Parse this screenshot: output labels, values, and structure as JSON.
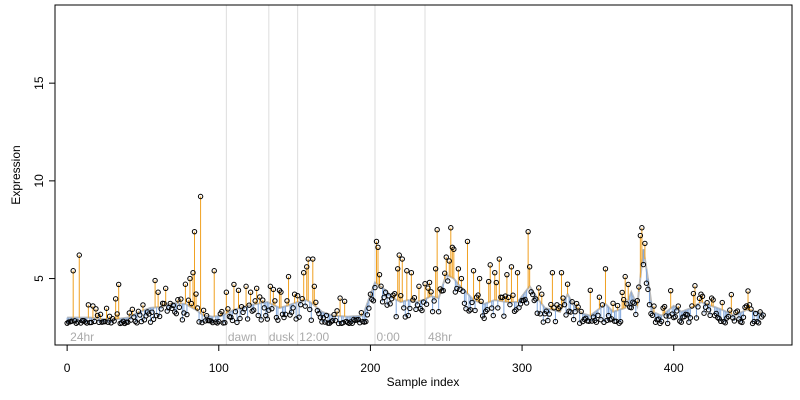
{
  "chart_data": {
    "type": "scatter",
    "title": "",
    "xlabel": "Sample index",
    "ylabel": "Expression",
    "xlim": [
      -8,
      478
    ],
    "ylim": [
      1.6,
      19.0
    ],
    "xticks": [
      0,
      100,
      200,
      300,
      400
    ],
    "yticks": [
      5,
      10,
      15
    ],
    "grid": false,
    "vlines": [
      105,
      133,
      152,
      203,
      236
    ],
    "annotations": [
      {
        "text": "24hr",
        "x": 2
      },
      {
        "text": "dawn",
        "x": 106
      },
      {
        "text": "dusk",
        "x": 133
      },
      {
        "text": "12:00",
        "x": 153
      },
      {
        "text": "0:00",
        "x": 204
      },
      {
        "text": "48hr",
        "x": 238
      }
    ],
    "annotation_y": 2.0,
    "colors": {
      "observed": "#000000",
      "fitted_line": "#bbbbbb",
      "residual_up": "#f0a020",
      "residual_down": "#7fa6dc",
      "vline": "#dddddd"
    },
    "point_count": 460,
    "baseline": [
      [
        0,
        3.0
      ],
      [
        8,
        3.0
      ],
      [
        15,
        3.0
      ],
      [
        20,
        2.95
      ],
      [
        30,
        2.9
      ],
      [
        40,
        3.0
      ],
      [
        48,
        3.3
      ],
      [
        55,
        3.5
      ],
      [
        62,
        3.55
      ],
      [
        70,
        3.75
      ],
      [
        78,
        3.7
      ],
      [
        85,
        3.4
      ],
      [
        90,
        3.1
      ],
      [
        96,
        3.05
      ],
      [
        102,
        3.1
      ],
      [
        110,
        3.4
      ],
      [
        118,
        3.6
      ],
      [
        125,
        3.7
      ],
      [
        132,
        3.8
      ],
      [
        140,
        3.5
      ],
      [
        145,
        3.6
      ],
      [
        152,
        3.8
      ],
      [
        158,
        3.9
      ],
      [
        162,
        3.7
      ],
      [
        168,
        3.3
      ],
      [
        175,
        3.1
      ],
      [
        185,
        3.05
      ],
      [
        195,
        3.1
      ],
      [
        203,
        4.8
      ],
      [
        210,
        4.4
      ],
      [
        215,
        4.0
      ],
      [
        220,
        3.8
      ],
      [
        225,
        3.9
      ],
      [
        230,
        3.8
      ],
      [
        235,
        3.9
      ],
      [
        240,
        4.1
      ],
      [
        245,
        4.0
      ],
      [
        250,
        5.2
      ],
      [
        255,
        5.0
      ],
      [
        258,
        4.7
      ],
      [
        262,
        4.4
      ],
      [
        268,
        3.9
      ],
      [
        275,
        3.7
      ],
      [
        282,
        3.9
      ],
      [
        290,
        3.8
      ],
      [
        297,
        3.8
      ],
      [
        305,
        4.6
      ],
      [
        310,
        4.0
      ],
      [
        315,
        3.5
      ],
      [
        320,
        3.4
      ],
      [
        325,
        3.3
      ],
      [
        330,
        4.2
      ],
      [
        335,
        3.5
      ],
      [
        340,
        3.2
      ],
      [
        345,
        3.1
      ],
      [
        350,
        3.4
      ],
      [
        355,
        3.7
      ],
      [
        360,
        3.3
      ],
      [
        368,
        3.5
      ],
      [
        372,
        4.3
      ],
      [
        376,
        3.6
      ],
      [
        380,
        6.5
      ],
      [
        383,
        5.0
      ],
      [
        386,
        3.3
      ],
      [
        392,
        3.1
      ],
      [
        400,
        3.6
      ],
      [
        405,
        3.3
      ],
      [
        412,
        3.5
      ],
      [
        418,
        3.8
      ],
      [
        425,
        3.6
      ],
      [
        432,
        3.4
      ],
      [
        440,
        3.1
      ],
      [
        448,
        3.4
      ],
      [
        455,
        3.3
      ],
      [
        462,
        3.2
      ]
    ],
    "spikes": [
      [
        4,
        5.4
      ],
      [
        8,
        6.2
      ],
      [
        17,
        3.6
      ],
      [
        34,
        4.7
      ],
      [
        58,
        4.9
      ],
      [
        60,
        4.3
      ],
      [
        81,
        5.0
      ],
      [
        83,
        5.3
      ],
      [
        84,
        7.4
      ],
      [
        88,
        9.2
      ],
      [
        97,
        5.4
      ],
      [
        105,
        4.3
      ],
      [
        110,
        4.7
      ],
      [
        113,
        4.4
      ],
      [
        118,
        4.6
      ],
      [
        121,
        4.3
      ],
      [
        125,
        4.5
      ],
      [
        134,
        4.6
      ],
      [
        140,
        4.4
      ],
      [
        146,
        5.1
      ],
      [
        150,
        4.2
      ],
      [
        156,
        5.3
      ],
      [
        158,
        5.6
      ],
      [
        159,
        6.0
      ],
      [
        162,
        6.0
      ],
      [
        163,
        4.6
      ],
      [
        180,
        4.0
      ],
      [
        204,
        6.9
      ],
      [
        205,
        6.6
      ],
      [
        206,
        5.2
      ],
      [
        218,
        5.5
      ],
      [
        219,
        6.2
      ],
      [
        221,
        6.0
      ],
      [
        224,
        5.4
      ],
      [
        227,
        5.3
      ],
      [
        232,
        4.6
      ],
      [
        239,
        4.8
      ],
      [
        243,
        5.5
      ],
      [
        244,
        7.5
      ],
      [
        250,
        6.1
      ],
      [
        252,
        5.9
      ],
      [
        253,
        7.6
      ],
      [
        254,
        6.6
      ],
      [
        255,
        6.5
      ],
      [
        258,
        5.5
      ],
      [
        260,
        5.0
      ],
      [
        264,
        6.9
      ],
      [
        268,
        5.4
      ],
      [
        272,
        5.0
      ],
      [
        279,
        5.7
      ],
      [
        282,
        5.3
      ],
      [
        285,
        6.0
      ],
      [
        290,
        5.2
      ],
      [
        293,
        5.6
      ],
      [
        297,
        5.3
      ],
      [
        304,
        7.4
      ],
      [
        305,
        5.6
      ],
      [
        313,
        4.2
      ],
      [
        320,
        5.3
      ],
      [
        326,
        5.3
      ],
      [
        345,
        4.4
      ],
      [
        355,
        5.5
      ],
      [
        368,
        5.1
      ],
      [
        370,
        4.7
      ],
      [
        378,
        7.2
      ],
      [
        379,
        7.6
      ],
      [
        381,
        6.8
      ],
      [
        418,
        4.2
      ],
      [
        425,
        4.0
      ]
    ],
    "noise_seed": 7
  }
}
